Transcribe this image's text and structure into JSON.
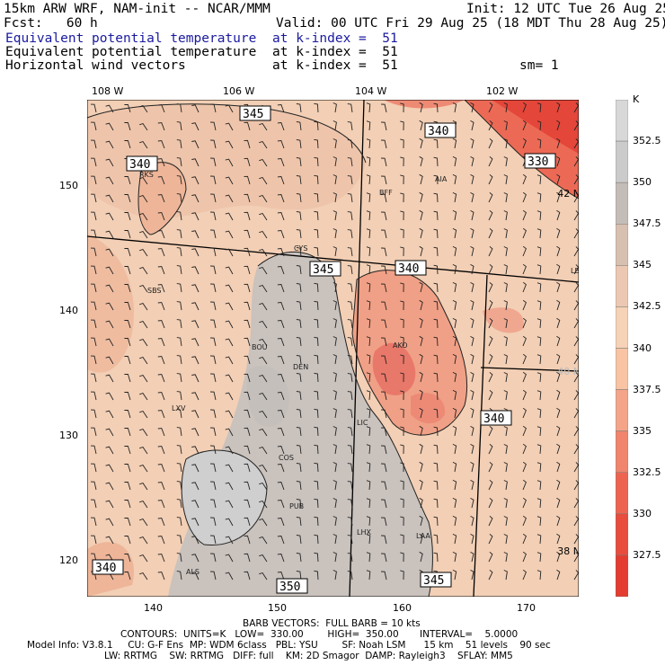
{
  "header": {
    "line1_left": "15km ARW WRF, NAM-init -- NCAR/MMM",
    "line1_right": "Init: 12 UTC Tue 26 Aug 25",
    "fcst": "Fcst:   60 h",
    "valid": "Valid: 00 UTC Fri 29 Aug 25 (18 MDT Thu 28 Aug 25)",
    "fields": [
      {
        "name": "Equivalent potential temperature",
        "level": "at k-index =  51"
      },
      {
        "name": "Equivalent potential temperature",
        "level": "at k-index =  51"
      },
      {
        "name": "Horizontal wind vectors",
        "level": "at k-index =  51"
      }
    ],
    "smooth": "sm= 1"
  },
  "map": {
    "lon_labels": [
      "108 W",
      "106 W",
      "104 W",
      "102 W"
    ],
    "lat_labels": [
      "42 N",
      "40 N",
      "38 N"
    ],
    "x_ticks": [
      "140",
      "150",
      "160",
      "170"
    ],
    "y_ticks": [
      "150",
      "140",
      "130",
      "120"
    ],
    "stations": [
      "RKS",
      "BFF",
      "AIA",
      "CYS",
      "SBS",
      "BOU",
      "DEN",
      "AKO",
      "LXV",
      "LIC",
      "COS",
      "PUB",
      "LHX",
      "LAA",
      "ALS",
      "LBF"
    ],
    "contour_labels": [
      "345",
      "340",
      "340",
      "330",
      "345",
      "340",
      "340",
      "340",
      "350",
      "345"
    ]
  },
  "colorbar": {
    "unit": "K",
    "levels": [
      "352.5",
      "350",
      "347.5",
      "345",
      "342.5",
      "340",
      "337.5",
      "335",
      "332.5",
      "330",
      "327.5"
    ],
    "colors": [
      "#d8d8d8",
      "#cbcbcb",
      "#c4bcb6",
      "#d8c0b0",
      "#ecc8b2",
      "#f6d2b6",
      "#f8c4a4",
      "#f4a488",
      "#f0846c",
      "#ec6450",
      "#e84c3c",
      "#e43c30"
    ]
  },
  "footer": {
    "barb": "BARB VECTORS:  FULL BARB = 10 kts",
    "contours": "CONTOURS:  UNITS=K   LOW=  330.00        HIGH=  350.00       INTERVAL=    5.0000",
    "model1": "Model Info: V3.8.1     CU: G-F Ens  MP: WDM 6class   PBL: YSU        SF: Noah LSM      15 km    51 levels    90 sec",
    "model2": "LW: RRTMG    SW: RRTMG   DIFF: full    KM: 2D Smagor  DAMP: Rayleigh3    SFLAY: MM5"
  }
}
